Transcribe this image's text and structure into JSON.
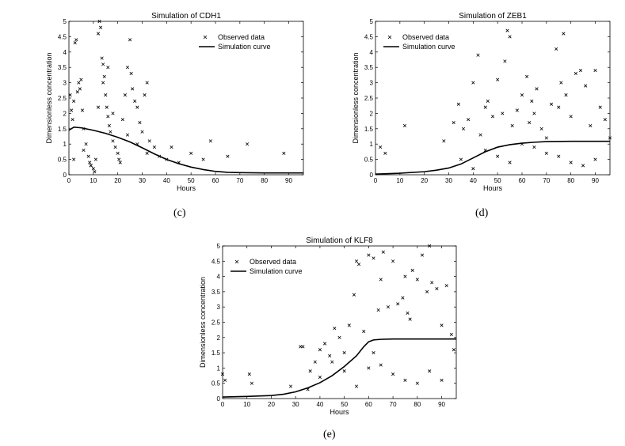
{
  "chart_data": [
    {
      "type": "scatter",
      "panel_label": "(c)",
      "title": "Simulation of CDH1",
      "xlabel": "Hours",
      "ylabel": "Dimensionless concentration",
      "xlim": [
        0,
        96
      ],
      "ylim": [
        0,
        5
      ],
      "xticks": [
        0,
        10,
        20,
        30,
        40,
        50,
        60,
        70,
        80,
        90
      ],
      "yticks": [
        0,
        0.5,
        1,
        1.5,
        2,
        2.5,
        3,
        3.5,
        4,
        4.5,
        5
      ],
      "legend": {
        "position": "top-right",
        "entries": [
          "Observed data",
          "Simulation curve"
        ]
      },
      "grid": false,
      "series": [
        {
          "name": "Observed data",
          "marker": "x",
          "x": [
            0.5,
            1,
            1.5,
            2,
            2.5,
            3,
            3.5,
            4,
            4.5,
            5,
            5.5,
            6,
            7,
            8,
            8.5,
            9,
            10,
            10.5,
            11,
            12,
            12.5,
            13,
            13.5,
            14,
            14.5,
            15,
            15.5,
            16,
            16.5,
            17,
            18,
            19,
            20,
            20.5,
            21,
            22,
            23,
            24,
            25,
            25.5,
            26,
            27,
            28,
            29,
            30,
            31,
            32,
            33,
            35,
            37,
            40,
            42,
            45,
            50,
            55,
            58,
            65,
            73,
            88,
            2,
            6,
            9,
            14,
            18,
            24,
            28,
            32,
            12,
            16
          ],
          "y": [
            2.6,
            2.1,
            1.8,
            2.4,
            4.3,
            4.4,
            2.7,
            3.0,
            2.8,
            3.1,
            2.1,
            1.5,
            1.0,
            0.6,
            0.4,
            0.3,
            0.2,
            0.1,
            0.5,
            4.6,
            5.0,
            4.8,
            3.8,
            3.6,
            3.2,
            2.6,
            2.2,
            1.9,
            1.6,
            1.4,
            1.1,
            0.9,
            0.7,
            0.5,
            0.4,
            1.8,
            2.6,
            3.5,
            4.4,
            3.3,
            2.8,
            2.4,
            2.2,
            1.7,
            1.4,
            2.6,
            3.0,
            1.1,
            0.9,
            0.6,
            0.5,
            0.9,
            0.4,
            0.7,
            0.5,
            1.1,
            0.6,
            1.0,
            0.7,
            0.5,
            0.8,
            0.3,
            3.0,
            2.0,
            1.3,
            1.0,
            0.7,
            2.2,
            3.5
          ]
        },
        {
          "name": "Simulation curve",
          "style": "line",
          "x": [
            0,
            2,
            5,
            10,
            15,
            20,
            25,
            30,
            35,
            40,
            45,
            50,
            55,
            60,
            65,
            70,
            80,
            96
          ],
          "y": [
            1.45,
            1.55,
            1.53,
            1.45,
            1.35,
            1.22,
            1.07,
            0.88,
            0.68,
            0.5,
            0.36,
            0.25,
            0.17,
            0.11,
            0.08,
            0.07,
            0.06,
            0.06
          ]
        }
      ]
    },
    {
      "type": "scatter",
      "panel_label": "(d)",
      "title": "Simulation of ZEB1",
      "xlabel": "Hours",
      "ylabel": "Dimensionless concentration",
      "xlim": [
        0,
        96
      ],
      "ylim": [
        0,
        5
      ],
      "xticks": [
        0,
        10,
        20,
        30,
        40,
        50,
        60,
        70,
        80,
        90
      ],
      "yticks": [
        0,
        0.5,
        1,
        1.5,
        2,
        2.5,
        3,
        3.5,
        4,
        4.5,
        5
      ],
      "legend": {
        "position": "top-left",
        "entries": [
          "Observed data",
          "Simulation curve"
        ]
      },
      "grid": false,
      "series": [
        {
          "name": "Observed data",
          "marker": "x",
          "x": [
            2,
            4,
            12,
            28,
            32,
            34,
            36,
            38,
            40,
            42,
            43,
            45,
            46,
            48,
            50,
            52,
            53,
            54,
            55,
            56,
            58,
            60,
            62,
            63,
            64,
            65,
            66,
            68,
            70,
            72,
            74,
            75,
            76,
            77,
            78,
            80,
            82,
            84,
            86,
            88,
            90,
            92,
            94,
            96,
            35,
            45,
            55,
            65,
            75,
            85,
            40,
            50,
            60,
            70,
            80,
            90
          ],
          "y": [
            0.9,
            0.7,
            1.6,
            1.1,
            1.7,
            2.3,
            1.5,
            1.8,
            3.0,
            3.9,
            1.3,
            2.2,
            2.4,
            1.9,
            3.1,
            2.0,
            3.7,
            4.7,
            4.5,
            1.6,
            2.1,
            2.6,
            3.2,
            1.7,
            2.4,
            2.0,
            2.8,
            1.5,
            1.2,
            2.3,
            4.1,
            2.2,
            3.0,
            4.6,
            2.6,
            1.9,
            3.3,
            3.4,
            2.9,
            1.6,
            3.4,
            2.2,
            1.8,
            1.2,
            0.5,
            0.8,
            0.4,
            0.9,
            0.6,
            0.3,
            0.2,
            0.6,
            1.0,
            0.7,
            0.4,
            0.5
          ]
        },
        {
          "name": "Simulation curve",
          "style": "line",
          "x": [
            0,
            10,
            20,
            25,
            30,
            35,
            40,
            45,
            50,
            55,
            60,
            65,
            70,
            80,
            96
          ],
          "y": [
            0.02,
            0.05,
            0.1,
            0.15,
            0.22,
            0.35,
            0.55,
            0.75,
            0.9,
            0.98,
            1.03,
            1.06,
            1.08,
            1.09,
            1.09
          ]
        }
      ]
    },
    {
      "type": "scatter",
      "panel_label": "(e)",
      "title": "Simulation of KLF8",
      "xlabel": "Hours",
      "ylabel": "Dimensionless concentration",
      "xlim": [
        0,
        96
      ],
      "ylim": [
        0,
        5
      ],
      "xticks": [
        0,
        10,
        20,
        30,
        40,
        50,
        60,
        70,
        80,
        90
      ],
      "yticks": [
        0,
        0.5,
        1,
        1.5,
        2,
        2.5,
        3,
        3.5,
        4,
        4.5,
        5
      ],
      "legend": {
        "position": "top-left",
        "entries": [
          "Observed data",
          "Simulation curve"
        ]
      },
      "grid": false,
      "series": [
        {
          "name": "Observed data",
          "marker": "x",
          "x": [
            0,
            1,
            11,
            12,
            28,
            32,
            33,
            36,
            38,
            40,
            42,
            44,
            46,
            48,
            50,
            52,
            54,
            55,
            56,
            58,
            60,
            62,
            64,
            65,
            66,
            68,
            70,
            72,
            74,
            75,
            76,
            78,
            80,
            82,
            84,
            85,
            86,
            88,
            90,
            92,
            94,
            95,
            40,
            50,
            60,
            70,
            80,
            90,
            45,
            55,
            65,
            75,
            85,
            35,
            62,
            77
          ],
          "y": [
            0.8,
            0.6,
            0.8,
            0.5,
            0.4,
            1.7,
            1.7,
            0.9,
            1.2,
            1.6,
            1.8,
            1.4,
            2.3,
            2.0,
            1.5,
            2.4,
            3.4,
            4.5,
            4.4,
            2.2,
            4.7,
            4.6,
            2.9,
            3.9,
            4.8,
            3.0,
            4.5,
            3.1,
            3.3,
            4.0,
            2.8,
            4.2,
            3.9,
            4.7,
            3.5,
            5.0,
            3.8,
            3.6,
            2.4,
            3.7,
            2.1,
            1.6,
            0.7,
            0.9,
            1.0,
            0.8,
            0.5,
            0.6,
            1.2,
            0.4,
            1.1,
            0.6,
            0.9,
            0.3,
            1.5,
            2.6
          ]
        },
        {
          "name": "Simulation curve",
          "style": "line",
          "x": [
            0,
            10,
            20,
            25,
            30,
            35,
            40,
            45,
            50,
            55,
            58,
            60,
            62,
            65,
            70,
            80,
            96
          ],
          "y": [
            0.05,
            0.07,
            0.1,
            0.14,
            0.22,
            0.35,
            0.52,
            0.75,
            1.05,
            1.4,
            1.7,
            1.86,
            1.92,
            1.94,
            1.95,
            1.95,
            1.95
          ]
        }
      ]
    }
  ]
}
